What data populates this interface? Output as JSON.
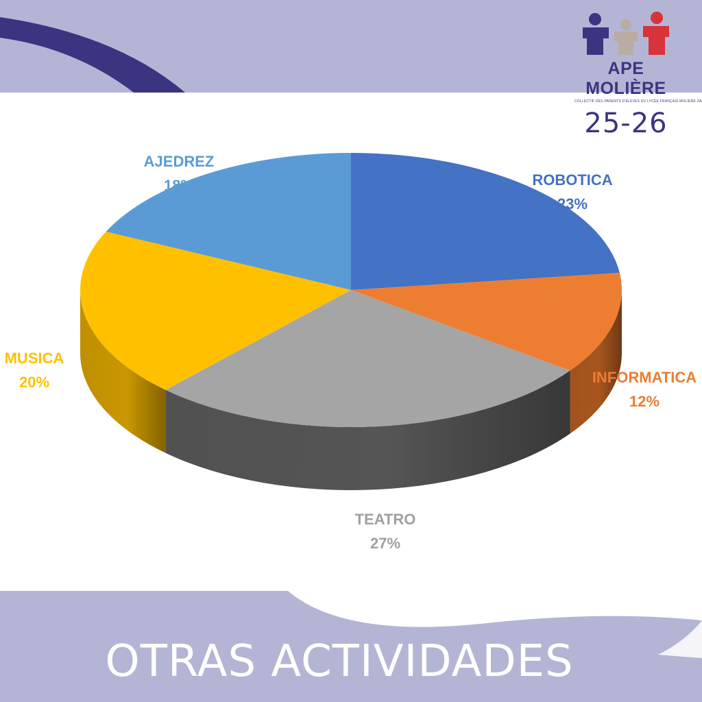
{
  "header": {
    "logo_name": "APE MOLIÈRE",
    "logo_tagline": "COLLECTIF DES PARENTS D'ÉLÈVES DU LYCÉE FRANÇAIS MOLIÈRE ZARAGOZA",
    "year": "25-26",
    "logo_colors": [
      "#3b3480",
      "#b9aca1",
      "#d8323b"
    ]
  },
  "footer": {
    "title": "OTRAS ACTIVIDADES"
  },
  "chart_data": {
    "type": "pie",
    "title": "",
    "style": "3d",
    "slices": [
      {
        "label": "ROBOTICA",
        "value": 23,
        "display": "23%",
        "color": "#4472c4",
        "side_color": "#2f5597"
      },
      {
        "label": "INFORMATICA",
        "value": 12,
        "display": "12%",
        "color": "#ed7d31",
        "side_color": "#a9561e"
      },
      {
        "label": "TEATRO",
        "value": 27,
        "display": "27%",
        "color": "#a5a5a5",
        "side_color": "#555555",
        "label_color": "#a0a0a0"
      },
      {
        "label": "MUSICA",
        "value": 20,
        "display": "20%",
        "color": "#ffc000",
        "side_color": "#c99700"
      },
      {
        "label": "AJEDREZ",
        "value": 18,
        "display": "18%",
        "color": "#5b9bd5",
        "side_color": "#3f77aa"
      }
    ]
  }
}
